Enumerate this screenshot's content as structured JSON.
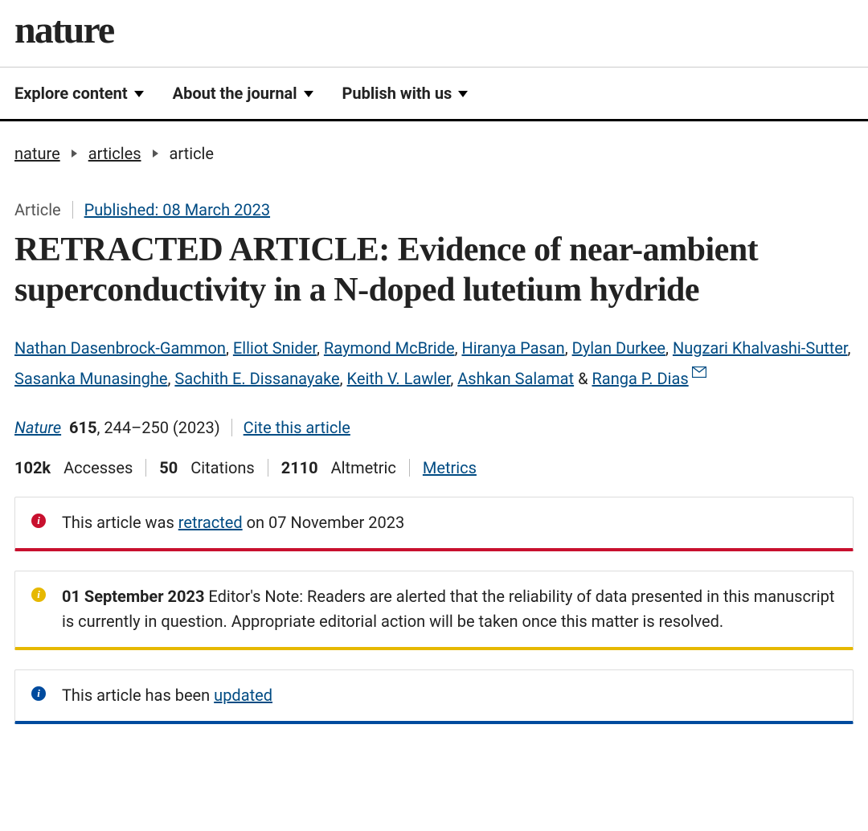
{
  "logo": "nature",
  "nav": [
    {
      "label": "Explore content"
    },
    {
      "label": "About the journal"
    },
    {
      "label": "Publish with us"
    }
  ],
  "breadcrumb": [
    {
      "label": "nature",
      "link": true
    },
    {
      "label": "articles",
      "link": true
    },
    {
      "label": "article",
      "link": false
    }
  ],
  "article_type": "Article",
  "published_label": "Published: 08 March 2023",
  "title": "RETRACTED ARTICLE: Evidence of near-ambient superconductivity in a N-doped lutetium hydride",
  "authors": [
    "Nathan Dasenbrock-Gammon",
    "Elliot Snider",
    "Raymond McBride",
    "Hiranya Pasan",
    "Dylan Durkee",
    "Nugzari Khalvashi-Sutter",
    "Sasanka Munasinghe",
    "Sachith E. Dissanayake",
    "Keith V. Lawler",
    "Ashkan Salamat",
    "Ranga P. Dias"
  ],
  "corresponding_last": true,
  "citation": {
    "journal": "Nature",
    "volume": "615",
    "pages": "244–250 (2023)",
    "cite_link": "Cite this article"
  },
  "metrics": {
    "accesses_val": "102k",
    "accesses_label": "Accesses",
    "citations_val": "50",
    "citations_label": "Citations",
    "altmetric_val": "2110",
    "altmetric_label": "Altmetric",
    "metrics_link": "Metrics"
  },
  "notices": {
    "retracted": {
      "prefix": "This article was ",
      "link": "retracted",
      "suffix": " on 07 November 2023"
    },
    "editors_note": {
      "date": "01 September 2023",
      "text": " Editor's Note: Readers are alerted that the reliability of data presented in this manuscript is currently in question. Appropriate editorial action will be taken once this matter is resolved."
    },
    "updated": {
      "prefix": "This article has been ",
      "link": "updated"
    }
  },
  "colors": {
    "link": "#004b83",
    "notice_red": "#c8102e",
    "notice_yellow": "#e6b800",
    "notice_blue": "#004b9e"
  }
}
